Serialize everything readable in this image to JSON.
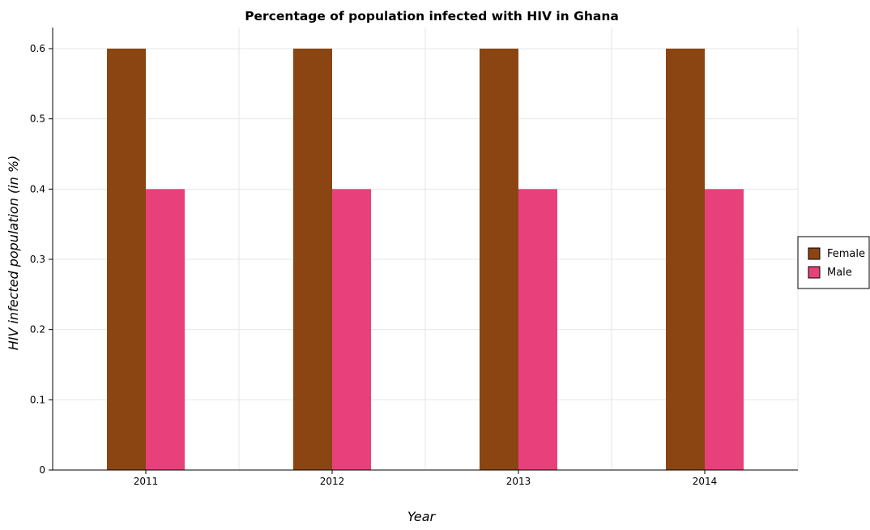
{
  "chart_data": {
    "type": "bar",
    "title": "Percentage of population infected with HIV in Ghana",
    "xlabel": "Year",
    "ylabel": "HIV infected population (in %)",
    "categories": [
      "2011",
      "2012",
      "2013",
      "2014"
    ],
    "series": [
      {
        "name": "Female",
        "values": [
          0.6,
          0.6,
          0.6,
          0.6
        ],
        "color": "#8b4513"
      },
      {
        "name": "Male",
        "values": [
          0.4,
          0.4,
          0.4,
          0.4
        ],
        "color": "#e8407a"
      }
    ],
    "ylim": [
      0,
      0.63
    ],
    "yticks": [
      "0",
      "0.1",
      "0.2",
      "0.3",
      "0.4",
      "0.5",
      "0.6"
    ],
    "grid": true,
    "legend": "right"
  }
}
